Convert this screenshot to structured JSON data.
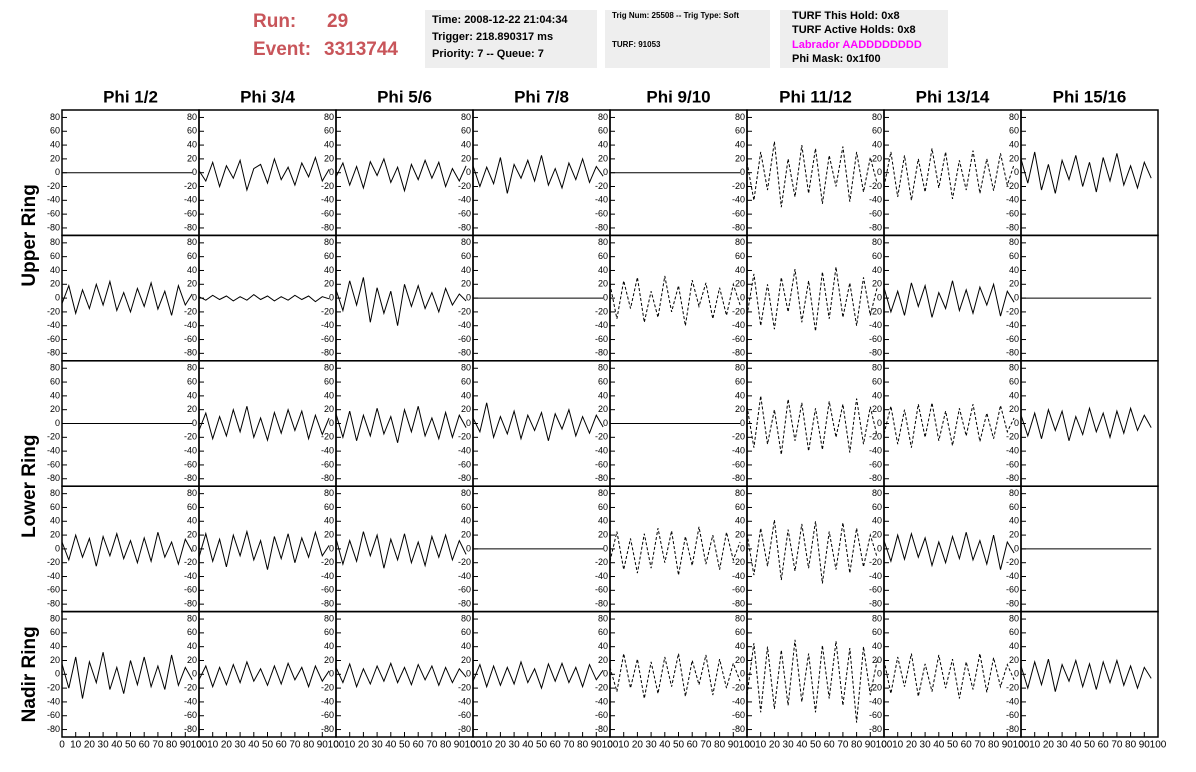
{
  "header": {
    "run_label": "Run:",
    "run": "29",
    "event_label": "Event:",
    "event": "3313744",
    "box1": [
      "Time: 2008-12-22 21:04:34",
      "Trigger: 218.890317 ms",
      "Priority: 7 -- Queue: 7"
    ],
    "box2": [
      "Trig Num: 25508 -- Trig Type: Soft",
      "TURF: 91053"
    ],
    "box3": [
      "TURF This Hold: 0x8",
      "TURF Active Holds: 0x8",
      "Labrador AADDDDDDDD",
      "Phi Mask: 0x1f00"
    ],
    "box3_highlight_color": "#ff00ff",
    "run_color": "#c8555a"
  },
  "chart_data": {
    "type": "line",
    "color": "#000000",
    "columns": [
      "Phi 1/2",
      "Phi 3/4",
      "Phi 5/6",
      "Phi 7/8",
      "Phi 9/10",
      "Phi 11/12",
      "Phi 13/14",
      "Phi 15/16"
    ],
    "row_labels": [
      "Upper Ring",
      "Lower Ring",
      "Nadir Ring"
    ],
    "xlim": [
      0,
      100
    ],
    "ylim": [
      -85,
      85
    ],
    "xticks": [
      0,
      10,
      20,
      30,
      40,
      50,
      60,
      70,
      80,
      90,
      100
    ],
    "yticks": [
      -80,
      -60,
      -40,
      -20,
      0,
      20,
      40,
      60,
      80
    ],
    "x": [
      0,
      5,
      10,
      15,
      20,
      25,
      30,
      35,
      40,
      45,
      50,
      55,
      60,
      65,
      70,
      75,
      80,
      85,
      90,
      95
    ],
    "panels": [
      [
        {
          "dashed": false,
          "values": [
            0,
            0,
            0,
            0,
            0,
            0,
            0,
            0,
            0,
            0,
            0,
            0,
            0,
            0,
            0,
            0,
            0,
            0,
            0,
            0
          ]
        },
        {
          "dashed": false,
          "values": [
            3,
            -12,
            15,
            -20,
            10,
            -8,
            18,
            -25,
            6,
            12,
            -15,
            20,
            -10,
            8,
            -18,
            14,
            -6,
            22,
            -12,
            5
          ]
        },
        {
          "dashed": false,
          "values": [
            -6,
            14,
            -18,
            9,
            -22,
            16,
            -4,
            20,
            -14,
            8,
            -26,
            12,
            -10,
            18,
            -8,
            15,
            -20,
            6,
            -12,
            10
          ]
        },
        {
          "dashed": false,
          "values": [
            10,
            -20,
            8,
            -16,
            22,
            -30,
            12,
            -8,
            18,
            -12,
            25,
            -18,
            6,
            -22,
            14,
            -10,
            20,
            -14,
            9,
            -5
          ]
        },
        {
          "dashed": false,
          "values": [
            0,
            0,
            0,
            0,
            0,
            0,
            0,
            0,
            0,
            0,
            0,
            0,
            0,
            0,
            0,
            0,
            0,
            0,
            0,
            0
          ]
        },
        {
          "dashed": true,
          "values": [
            15,
            -40,
            30,
            -25,
            45,
            -50,
            20,
            -35,
            40,
            -30,
            35,
            -45,
            25,
            -20,
            38,
            -42,
            30,
            -28,
            22,
            -15
          ]
        },
        {
          "dashed": true,
          "values": [
            -20,
            30,
            -35,
            25,
            -40,
            20,
            -28,
            35,
            -22,
            30,
            -38,
            18,
            -25,
            32,
            -30,
            20,
            -26,
            28,
            -18,
            12
          ]
        },
        {
          "dashed": false,
          "values": [
            20,
            -15,
            30,
            -25,
            12,
            -30,
            18,
            -10,
            25,
            -20,
            15,
            -28,
            22,
            -12,
            28,
            -18,
            10,
            -22,
            15,
            -8
          ]
        }
      ],
      [
        {
          "dashed": false,
          "values": [
            -8,
            18,
            -22,
            12,
            -15,
            20,
            -10,
            24,
            -18,
            8,
            -20,
            14,
            -12,
            22,
            -16,
            10,
            -25,
            18,
            -10,
            6
          ]
        },
        {
          "dashed": false,
          "values": [
            2,
            -3,
            4,
            -2,
            3,
            -4,
            2,
            -3,
            5,
            -2,
            3,
            -4,
            2,
            -3,
            4,
            -2,
            3,
            -5,
            2,
            -1
          ]
        },
        {
          "dashed": false,
          "values": [
            12,
            -18,
            25,
            -10,
            30,
            -35,
            15,
            -22,
            10,
            -40,
            20,
            -12,
            18,
            -15,
            8,
            -20,
            14,
            -10,
            6,
            -4
          ]
        },
        {
          "dashed": false,
          "values": [
            0,
            0,
            0,
            0,
            0,
            0,
            0,
            0,
            0,
            0,
            0,
            0,
            0,
            0,
            0,
            0,
            0,
            0,
            0,
            0
          ]
        },
        {
          "dashed": true,
          "values": [
            20,
            -30,
            25,
            -15,
            30,
            -35,
            10,
            -28,
            32,
            -20,
            18,
            -40,
            26,
            -12,
            22,
            -30,
            15,
            -25,
            20,
            -10
          ]
        },
        {
          "dashed": true,
          "values": [
            -25,
            35,
            -40,
            20,
            -45,
            30,
            -20,
            42,
            -35,
            25,
            -48,
            38,
            -30,
            45,
            -28,
            22,
            -40,
            30,
            -25,
            15
          ]
        },
        {
          "dashed": false,
          "values": [
            15,
            -20,
            10,
            -25,
            22,
            -12,
            18,
            -28,
            8,
            -15,
            25,
            -18,
            12,
            -22,
            16,
            -10,
            20,
            -26,
            10,
            -6
          ]
        },
        {
          "dashed": false,
          "values": [
            0,
            0,
            0,
            0,
            0,
            0,
            0,
            0,
            0,
            0,
            0,
            0,
            0,
            0,
            0,
            0,
            0,
            0,
            0,
            0
          ]
        }
      ],
      [
        {
          "dashed": false,
          "values": [
            0,
            0,
            0,
            0,
            0,
            0,
            0,
            0,
            0,
            0,
            0,
            0,
            0,
            0,
            0,
            0,
            0,
            0,
            0,
            0
          ]
        },
        {
          "dashed": false,
          "values": [
            -10,
            15,
            -22,
            10,
            -18,
            20,
            -12,
            25,
            -20,
            8,
            -24,
            16,
            -14,
            20,
            -10,
            18,
            -22,
            12,
            -16,
            8
          ]
        },
        {
          "dashed": false,
          "values": [
            14,
            -20,
            18,
            -25,
            12,
            -18,
            22,
            -15,
            10,
            -28,
            20,
            -12,
            25,
            -18,
            8,
            -22,
            16,
            -20,
            12,
            -6
          ]
        },
        {
          "dashed": false,
          "values": [
            8,
            -12,
            30,
            -20,
            10,
            -15,
            18,
            -22,
            12,
            -10,
            16,
            -25,
            14,
            -8,
            20,
            -18,
            10,
            -14,
            12,
            -5
          ]
        },
        {
          "dashed": false,
          "values": [
            0,
            0,
            0,
            0,
            0,
            0,
            0,
            0,
            0,
            0,
            0,
            0,
            0,
            0,
            0,
            0,
            0,
            0,
            0,
            0
          ]
        },
        {
          "dashed": true,
          "values": [
            25,
            -35,
            40,
            -30,
            20,
            -45,
            35,
            -25,
            30,
            -40,
            22,
            -38,
            32,
            -20,
            28,
            -42,
            36,
            -30,
            24,
            -18
          ]
        },
        {
          "dashed": true,
          "values": [
            -15,
            25,
            -30,
            20,
            -35,
            28,
            -20,
            30,
            -25,
            18,
            -32,
            22,
            -18,
            28,
            -26,
            15,
            -22,
            26,
            -12,
            8
          ]
        },
        {
          "dashed": false,
          "values": [
            12,
            -18,
            15,
            -22,
            20,
            -10,
            18,
            -25,
            10,
            -16,
            22,
            -12,
            15,
            -20,
            18,
            -14,
            22,
            -10,
            12,
            -6
          ]
        }
      ],
      [
        {
          "dashed": false,
          "values": [
            10,
            -16,
            20,
            -12,
            15,
            -25,
            18,
            -10,
            22,
            -14,
            12,
            -20,
            16,
            -18,
            24,
            -12,
            10,
            -22,
            14,
            -4
          ]
        },
        {
          "dashed": false,
          "values": [
            -12,
            22,
            -18,
            14,
            -26,
            20,
            -10,
            25,
            -16,
            12,
            -30,
            18,
            -14,
            22,
            -20,
            16,
            -12,
            24,
            -10,
            5
          ]
        },
        {
          "dashed": false,
          "values": [
            15,
            -22,
            12,
            -18,
            25,
            -10,
            20,
            -28,
            14,
            -16,
            22,
            -20,
            10,
            -24,
            18,
            -12,
            20,
            -16,
            12,
            -8
          ]
        },
        {
          "dashed": false,
          "values": [
            0,
            0,
            0,
            0,
            0,
            0,
            0,
            0,
            0,
            0,
            0,
            0,
            0,
            0,
            0,
            0,
            0,
            0,
            0,
            0
          ]
        },
        {
          "dashed": true,
          "values": [
            -18,
            25,
            -30,
            15,
            -35,
            22,
            -28,
            30,
            -20,
            26,
            -38,
            18,
            -24,
            32,
            -22,
            20,
            -30,
            24,
            -16,
            10
          ]
        },
        {
          "dashed": true,
          "values": [
            22,
            -38,
            30,
            -25,
            42,
            -45,
            28,
            -32,
            36,
            -28,
            40,
            -50,
            25,
            -30,
            38,
            -35,
            30,
            -26,
            20,
            -12
          ]
        },
        {
          "dashed": false,
          "values": [
            12,
            -18,
            20,
            -15,
            22,
            -12,
            16,
            -24,
            10,
            -20,
            18,
            -14,
            24,
            -16,
            12,
            -22,
            20,
            -30,
            10,
            -6
          ]
        },
        {
          "dashed": false,
          "values": [
            0,
            0,
            0,
            0,
            0,
            0,
            0,
            0,
            0,
            0,
            0,
            0,
            0,
            0,
            0,
            0,
            0,
            0,
            0,
            0
          ]
        }
      ],
      [
        {
          "dashed": false,
          "values": [
            15,
            -20,
            25,
            -35,
            18,
            -12,
            32,
            -22,
            10,
            -28,
            20,
            -15,
            25,
            -18,
            12,
            -22,
            28,
            -16,
            10,
            -8
          ]
        },
        {
          "dashed": false,
          "values": [
            -8,
            12,
            -18,
            10,
            -15,
            14,
            -12,
            18,
            -10,
            8,
            -16,
            12,
            -14,
            16,
            -8,
            10,
            -18,
            12,
            -10,
            5
          ]
        },
        {
          "dashed": false,
          "values": [
            10,
            -12,
            15,
            -18,
            8,
            -14,
            12,
            -10,
            16,
            -12,
            10,
            -15,
            14,
            -8,
            12,
            -16,
            10,
            -12,
            8,
            -4
          ]
        },
        {
          "dashed": false,
          "values": [
            -10,
            14,
            -18,
            12,
            -16,
            10,
            -14,
            18,
            -12,
            8,
            -20,
            15,
            -10,
            16,
            -12,
            10,
            -18,
            14,
            -8,
            6
          ]
        },
        {
          "dashed": true,
          "values": [
            10,
            -25,
            30,
            -20,
            22,
            -35,
            18,
            -28,
            25,
            -18,
            30,
            -32,
            20,
            -15,
            28,
            -30,
            22,
            -20,
            16,
            -10
          ]
        },
        {
          "dashed": true,
          "values": [
            -30,
            45,
            -55,
            40,
            -50,
            35,
            -45,
            50,
            -40,
            30,
            -55,
            42,
            -35,
            48,
            -45,
            38,
            -70,
            40,
            -30,
            20
          ]
        },
        {
          "dashed": true,
          "values": [
            20,
            -28,
            25,
            -18,
            30,
            -32,
            15,
            -25,
            28,
            -20,
            22,
            -35,
            18,
            -22,
            30,
            -26,
            24,
            -18,
            14,
            -8
          ]
        },
        {
          "dashed": false,
          "values": [
            12,
            -20,
            18,
            -15,
            22,
            -25,
            14,
            -10,
            20,
            -18,
            15,
            -22,
            18,
            -12,
            20,
            -16,
            12,
            -20,
            10,
            -6
          ]
        }
      ]
    ]
  }
}
